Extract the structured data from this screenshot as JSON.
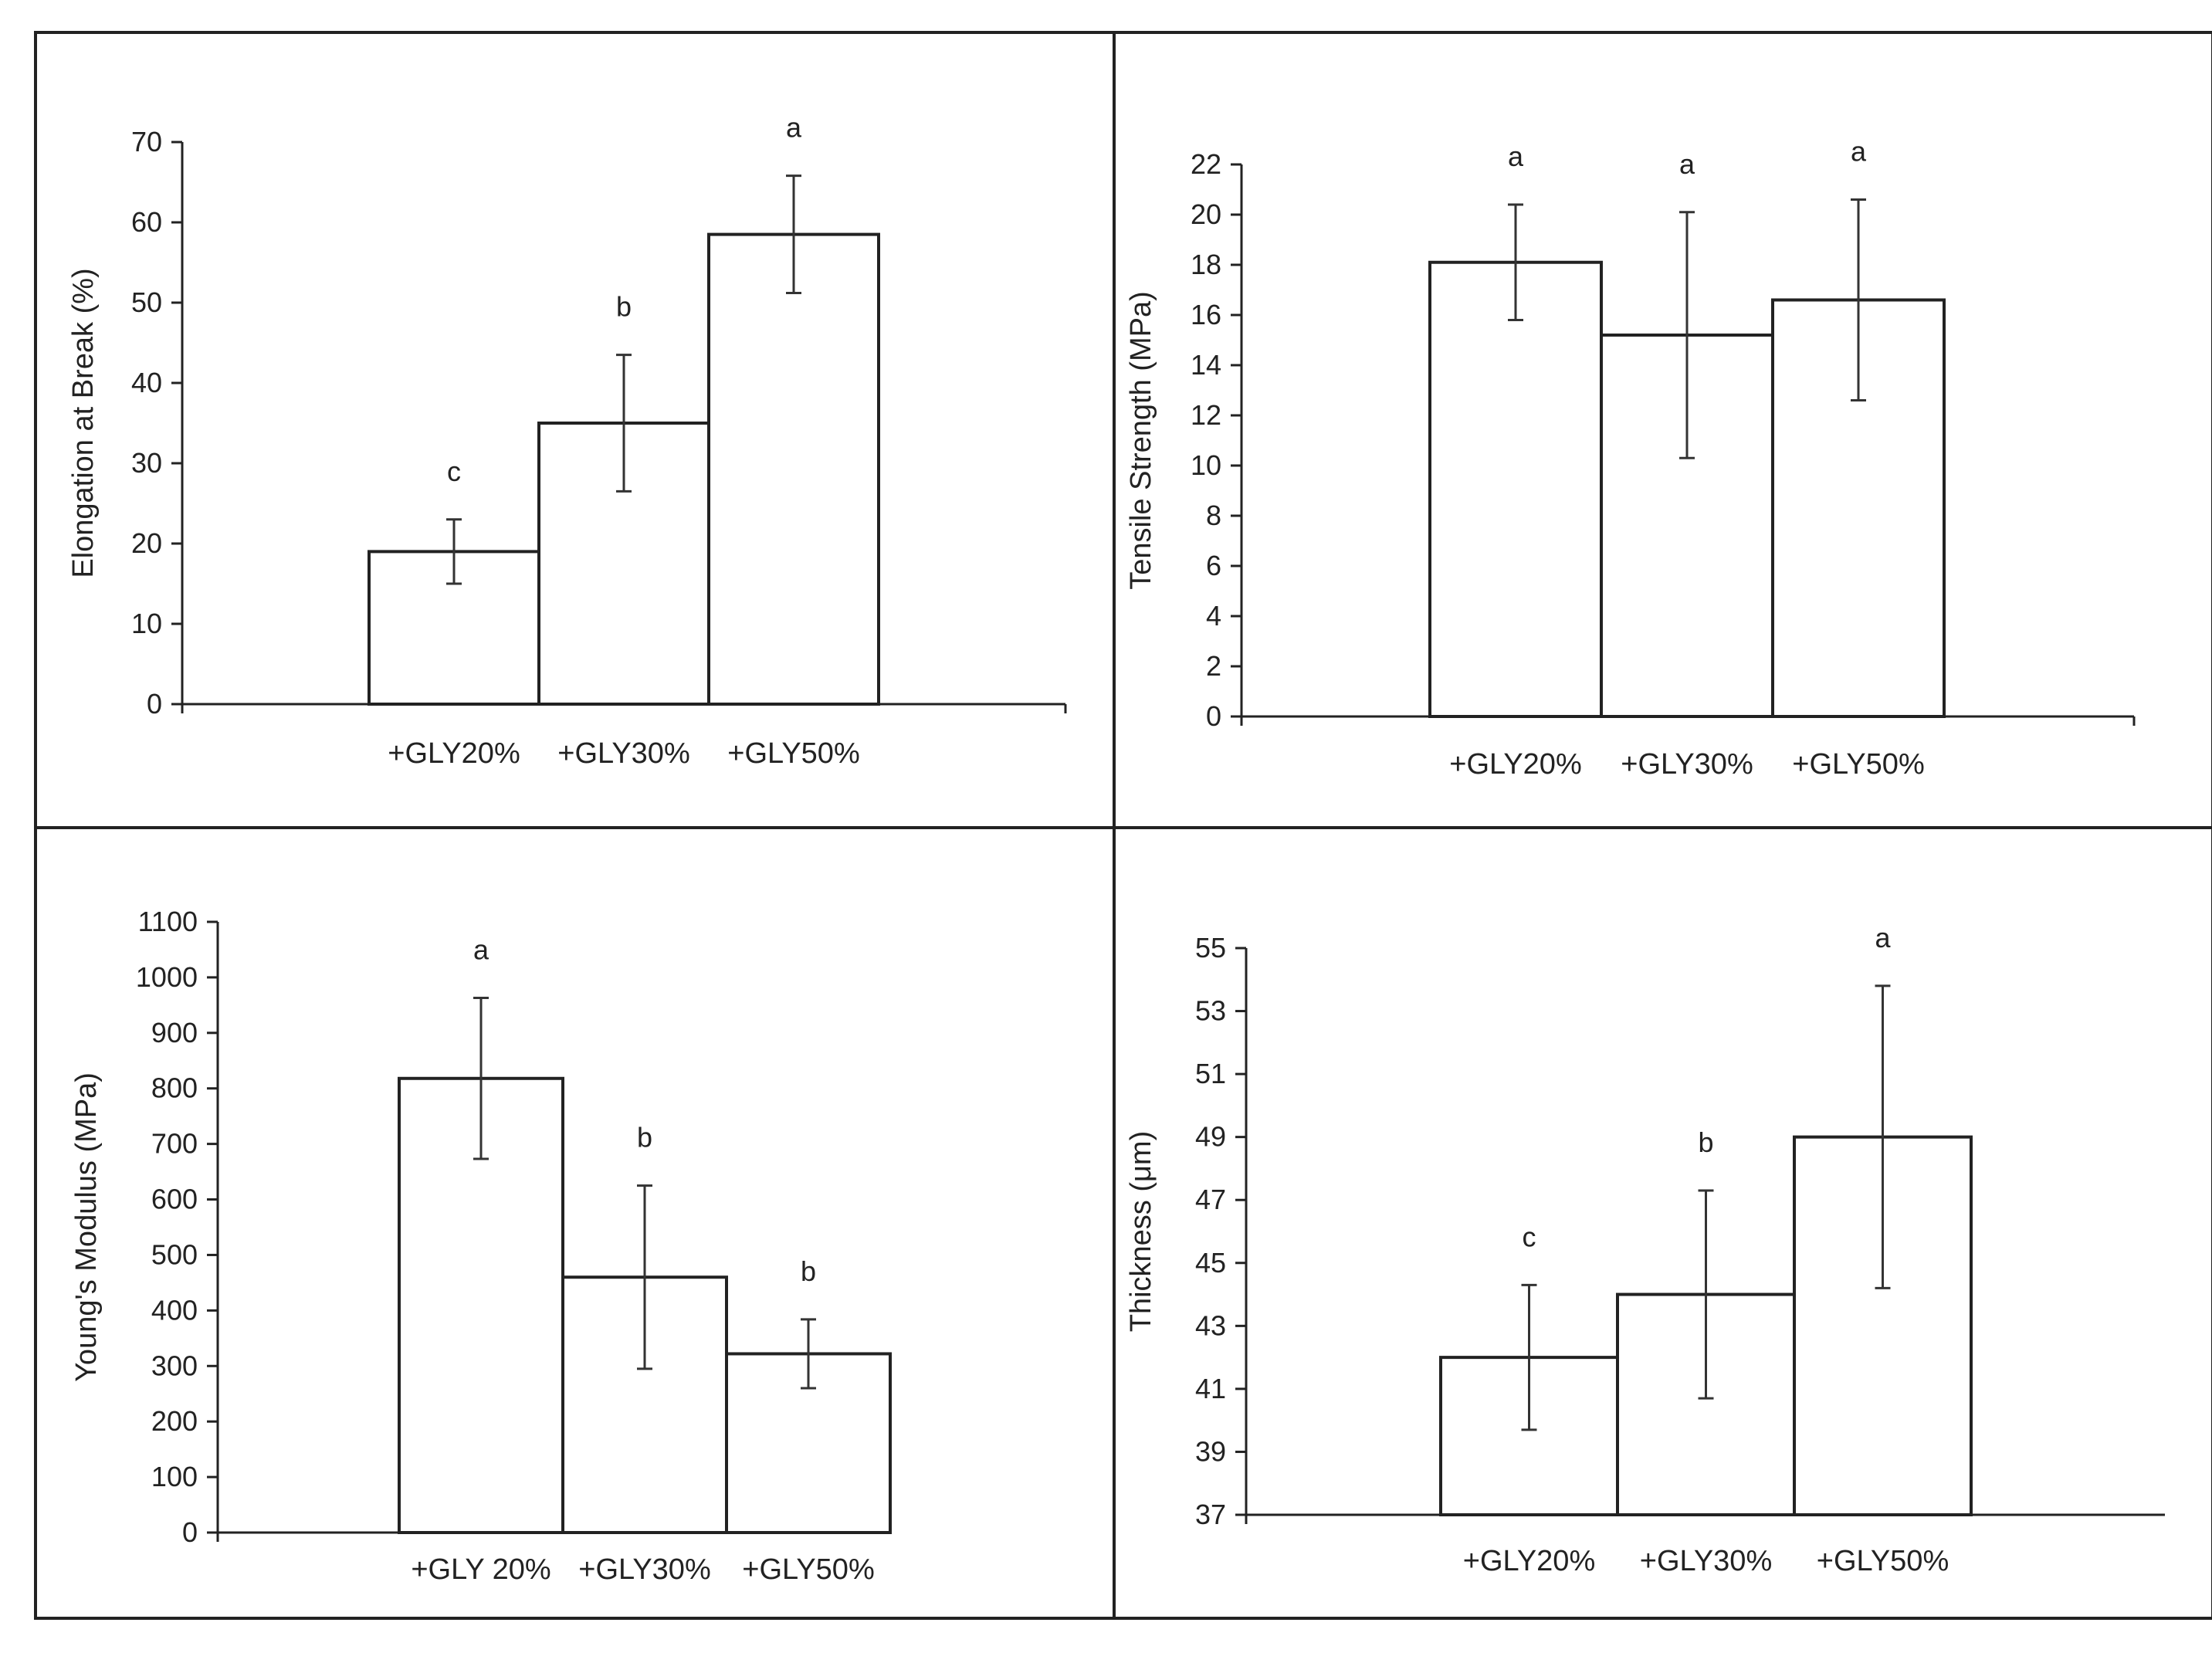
{
  "figure": {
    "background": "#ffffff",
    "frame_color": "#222222"
  },
  "chart_data": [
    {
      "id": "elongation",
      "type": "bar",
      "position": "top-left",
      "ylabel": "Elongation at Break (%)",
      "xlabel": "",
      "categories": [
        "+GLY20%",
        "+GLY30%",
        "+GLY50%"
      ],
      "values": [
        19,
        35,
        58.5
      ],
      "errors": [
        4,
        8.5,
        7.3
      ],
      "significance": [
        "c",
        "b",
        "a"
      ],
      "ylim": [
        0,
        70
      ],
      "yticks": [
        0,
        10,
        20,
        30,
        40,
        50,
        60,
        70
      ]
    },
    {
      "id": "tensile",
      "type": "bar",
      "position": "top-right",
      "ylabel": "Tensile Strength (MPa)",
      "xlabel": "",
      "categories": [
        "+GLY20%",
        "+GLY30%",
        "+GLY50%"
      ],
      "values": [
        18.1,
        15.2,
        16.6
      ],
      "errors": [
        2.3,
        4.9,
        4.0
      ],
      "significance": [
        "a",
        "a",
        "a"
      ],
      "ylim": [
        0,
        22
      ],
      "yticks": [
        0,
        2,
        4,
        6,
        8,
        10,
        12,
        14,
        16,
        18,
        20,
        22
      ]
    },
    {
      "id": "youngs",
      "type": "bar",
      "position": "bottom-left",
      "ylabel": "Young's Modulus (MPa)",
      "xlabel": "",
      "categories": [
        "+GLY 20%",
        "+GLY30%",
        "+GLY50%"
      ],
      "values": [
        818,
        460,
        322
      ],
      "errors": [
        145,
        165,
        62
      ],
      "significance": [
        "a",
        "b",
        "b"
      ],
      "ylim": [
        0,
        1100
      ],
      "yticks": [
        0,
        100,
        200,
        300,
        400,
        500,
        600,
        700,
        800,
        900,
        1000,
        1100
      ]
    },
    {
      "id": "thickness",
      "type": "bar",
      "position": "bottom-right",
      "ylabel": "Thickness (μm)",
      "xlabel": "",
      "categories": [
        "+GLY20%",
        "+GLY30%",
        "+GLY50%"
      ],
      "values": [
        42,
        44,
        49
      ],
      "errors": [
        2.3,
        3.3,
        4.8
      ],
      "significance": [
        "c",
        "b",
        "a"
      ],
      "ylim": [
        37,
        55
      ],
      "yticks": [
        37,
        39,
        41,
        43,
        45,
        47,
        49,
        51,
        53,
        55
      ]
    }
  ]
}
